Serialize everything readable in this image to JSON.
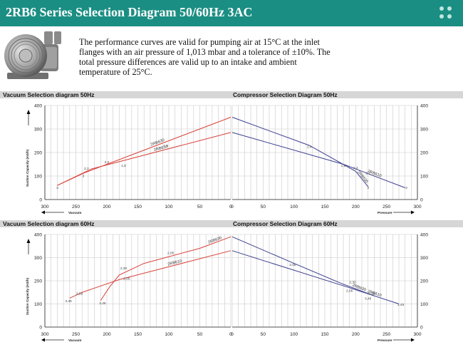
{
  "header": {
    "title": "2RB6 Series Selection Diagram 50/60Hz 3AC"
  },
  "intro": {
    "text": "The performance curves are valid for pumping air at 15°C at the inlet flanges with an air pressure of 1,013 mbar and a tolerance of ±10%. The total pressure differences are valid up to an intake and ambient temperature of 25°C."
  },
  "colors": {
    "header": "#1b8e83",
    "series_2RB630": "#d9413a",
    "series_2RB610": "#d9413a",
    "compressor_line": "#3c3f8f",
    "panel_band": "#d6d6d6",
    "grid": "#c8c8c8"
  },
  "icons": [
    "blower-icon",
    "menu-dots-icon",
    "arrow-up-icon",
    "arrow-left-icon",
    "arrow-right-icon"
  ],
  "axis_labels": {
    "ylabel": "Suction Capacity (m3/h)",
    "vacuum": "Vacuum",
    "pressure": "Pressure"
  },
  "chart_data": [
    {
      "type": "line",
      "title": "Vacuum Selection diagram 50Hz",
      "xlabel": "Vacuum",
      "ylabel": "Suction Capacity (m3/h)",
      "x_ticks": [
        300,
        250,
        200,
        150,
        100,
        50,
        0
      ],
      "y_ticks": [
        0,
        100,
        200,
        300,
        400
      ],
      "xlim": [
        300,
        0
      ],
      "ylim": [
        0,
        400
      ],
      "grid": true,
      "series": [
        {
          "name": "2RB630",
          "x": [
            280,
            235,
            0
          ],
          "y": [
            60,
            115,
            350
          ]
        },
        {
          "name": "2RB610",
          "x": [
            280,
            225,
            0
          ],
          "y": [
            60,
            130,
            285
          ]
        }
      ],
      "annotations": [
        {
          "text": "3",
          "x": 280,
          "y": 45
        },
        {
          "text": "3",
          "x": 238,
          "y": 95
        },
        {
          "text": "2,2",
          "x": 233,
          "y": 128
        },
        {
          "text": "2,2",
          "x": 200,
          "y": 155
        },
        {
          "text": "1,8",
          "x": 173,
          "y": 140
        },
        {
          "text": "1,6",
          "x": 105,
          "y": 225
        }
      ]
    },
    {
      "type": "line",
      "title": "Compressor Selection Diagram 50Hz",
      "xlabel": "Pressure",
      "ylabel": "",
      "x_ticks": [
        0,
        50,
        100,
        150,
        200,
        250,
        300
      ],
      "y_ticks": [
        0,
        100,
        200,
        300,
        400
      ],
      "xlim": [
        0,
        300
      ],
      "ylim": [
        0,
        400
      ],
      "grid": true,
      "series": [
        {
          "name": "2RB630",
          "x": [
            0,
            125,
            200,
            220
          ],
          "y": [
            350,
            230,
            120,
            55
          ]
        },
        {
          "name": "2RB610",
          "x": [
            0,
            180,
            280
          ],
          "y": [
            285,
            150,
            50
          ]
        }
      ],
      "annotations": [
        {
          "text": "1,4",
          "x": 125,
          "y": 220
        },
        {
          "text": "1,6",
          "x": 180,
          "y": 140
        },
        {
          "text": "2,2",
          "x": 200,
          "y": 130
        },
        {
          "text": "2,2",
          "x": 220,
          "y": 108
        },
        {
          "text": "3",
          "x": 220,
          "y": 45
        },
        {
          "text": "3",
          "x": 282,
          "y": 45
        }
      ]
    },
    {
      "type": "line",
      "title": "Vacuum Selection diagram 60Hz",
      "xlabel": "Vacuum",
      "ylabel": "Suction Capacity (m3/h)",
      "x_ticks": [
        300,
        250,
        200,
        150,
        100,
        50,
        0
      ],
      "y_ticks": [
        0,
        100,
        200,
        300,
        400
      ],
      "xlim": [
        300,
        0
      ],
      "ylim": [
        0,
        400
      ],
      "grid": true,
      "series": [
        {
          "name": "2RB630",
          "x": [
            210,
            195,
            180,
            140,
            50,
            0
          ],
          "y": [
            115,
            175,
            225,
            275,
            340,
            390
          ]
        },
        {
          "name": "2RB610",
          "x": [
            260,
            240,
            180,
            0
          ],
          "y": [
            125,
            150,
            205,
            330
          ]
        }
      ],
      "annotations": [
        {
          "text": "3,45",
          "x": 262,
          "y": 108
        },
        {
          "text": "2,55",
          "x": 244,
          "y": 140
        },
        {
          "text": "3,45",
          "x": 207,
          "y": 98
        },
        {
          "text": "2,30",
          "x": 173,
          "y": 250
        },
        {
          "text": "2,05",
          "x": 168,
          "y": 205
        },
        {
          "text": "2,05",
          "x": 97,
          "y": 315
        }
      ]
    },
    {
      "type": "line",
      "title": "Compressor Selection Diagram 60Hz",
      "xlabel": "Pressure",
      "ylabel": "",
      "x_ticks": [
        0,
        50,
        100,
        150,
        200,
        250,
        300
      ],
      "y_ticks": [
        0,
        100,
        200,
        300,
        400
      ],
      "xlim": [
        0,
        300
      ],
      "ylim": [
        0,
        400
      ],
      "grid": true,
      "series": [
        {
          "name": "2RB630",
          "x": [
            0,
            100,
            180,
            230
          ],
          "y": [
            390,
            275,
            185,
            135
          ]
        },
        {
          "name": "2RB610",
          "x": [
            0,
            190,
            270
          ],
          "y": [
            330,
            170,
            100
          ]
        }
      ],
      "annotations": [
        {
          "text": "2,05",
          "x": 98,
          "y": 265
        },
        {
          "text": "2,30",
          "x": 195,
          "y": 190
        },
        {
          "text": "2,05",
          "x": 190,
          "y": 152
        },
        {
          "text": "2,55",
          "x": 226,
          "y": 140
        },
        {
          "text": "3,45",
          "x": 220,
          "y": 118
        },
        {
          "text": "3,45",
          "x": 273,
          "y": 92
        }
      ]
    }
  ]
}
